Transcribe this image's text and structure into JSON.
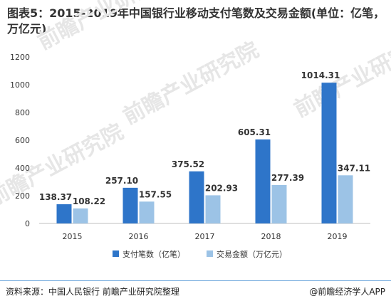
{
  "title": "图表5：2015-2019年中国银行业移动支付笔数及交易金额(单位：亿笔，万亿元)",
  "source": "资料来源：中国人民银行 前瞻产业研究院整理",
  "credit": "@前瞻经济学人APP",
  "watermark": "前瞻产业研究院",
  "colors": {
    "series1": "#2e75c9",
    "series2": "#9cc3e6",
    "axis": "#bfbfbf",
    "text": "#333333"
  },
  "chart_data": {
    "type": "bar",
    "categories": [
      "2015",
      "2016",
      "2017",
      "2018",
      "2019"
    ],
    "series": [
      {
        "name": "支付笔数（亿笔）",
        "values": [
          138.37,
          257.1,
          375.52,
          605.31,
          1014.31
        ],
        "value_labels": [
          "138.37",
          "257.10",
          "375.52",
          "605.31",
          "1014.31"
        ]
      },
      {
        "name": "交易金额（万亿元）",
        "values": [
          108.22,
          157.55,
          202.93,
          277.39,
          347.11
        ],
        "value_labels": [
          "108.22",
          "157.55",
          "202.93",
          "277.39",
          "347.11"
        ]
      }
    ],
    "ylim": [
      0,
      1200
    ],
    "yticks": [
      0,
      200,
      400,
      600,
      800,
      1000,
      1200
    ],
    "grid": false,
    "legend": "bottom"
  }
}
